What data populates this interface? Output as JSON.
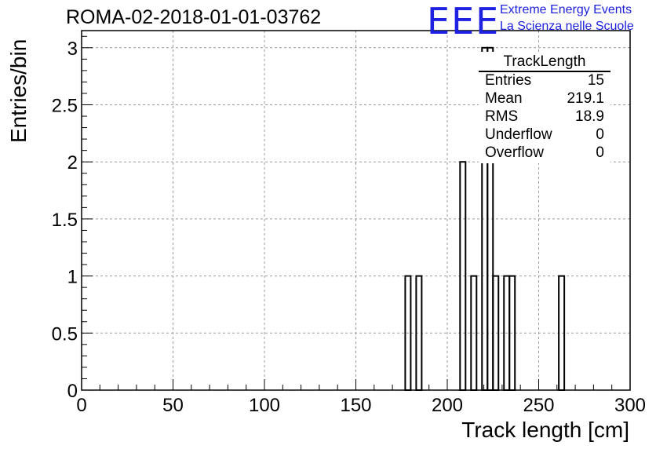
{
  "header": {
    "title": "ROMA-02-2018-01-01-03762",
    "logo_text": "EEE",
    "org_line1": "Extreme Energy Events",
    "org_line2": "La Scienza nelle Scuole"
  },
  "stats_box": {
    "title": "TrackLength",
    "rows": [
      {
        "key": "Entries",
        "value": "15"
      },
      {
        "key": "Mean",
        "value": "219.1"
      },
      {
        "key": "RMS",
        "value": "18.9"
      },
      {
        "key": "Underflow",
        "value": "0"
      },
      {
        "key": "Overflow",
        "value": "0"
      }
    ]
  },
  "colors": {
    "logo": "#1e22e0",
    "grid": "#9a9a9a",
    "bars": "#000000"
  },
  "chart_data": {
    "type": "bar",
    "title": "ROMA-02-2018-01-01-03762",
    "xlabel": "Track length [cm]",
    "ylabel": "Entries/bin",
    "xlim": [
      0,
      300
    ],
    "ylim": [
      0,
      3.15
    ],
    "grid": true,
    "bin_width": 3,
    "x_ticks": [
      0,
      50,
      100,
      150,
      200,
      250,
      300
    ],
    "x_tick_labels": [
      "0",
      "50",
      "100",
      "150",
      "200",
      "250",
      "300"
    ],
    "y_ticks": [
      0,
      0.5,
      1,
      1.5,
      2,
      2.5,
      3
    ],
    "y_tick_labels": [
      "0",
      "0.5",
      "1",
      "1.5",
      "2",
      "2.5",
      "3"
    ],
    "bins": [
      {
        "x0": 177,
        "x1": 180,
        "count": 1
      },
      {
        "x0": 183,
        "x1": 186,
        "count": 1
      },
      {
        "x0": 207,
        "x1": 210,
        "count": 2
      },
      {
        "x0": 213,
        "x1": 216,
        "count": 1
      },
      {
        "x0": 219,
        "x1": 222,
        "count": 3
      },
      {
        "x0": 222,
        "x1": 225,
        "count": 3
      },
      {
        "x0": 225,
        "x1": 228,
        "count": 1
      },
      {
        "x0": 231,
        "x1": 234,
        "count": 1
      },
      {
        "x0": 234,
        "x1": 237,
        "count": 1
      },
      {
        "x0": 261,
        "x1": 264,
        "count": 1
      }
    ]
  }
}
